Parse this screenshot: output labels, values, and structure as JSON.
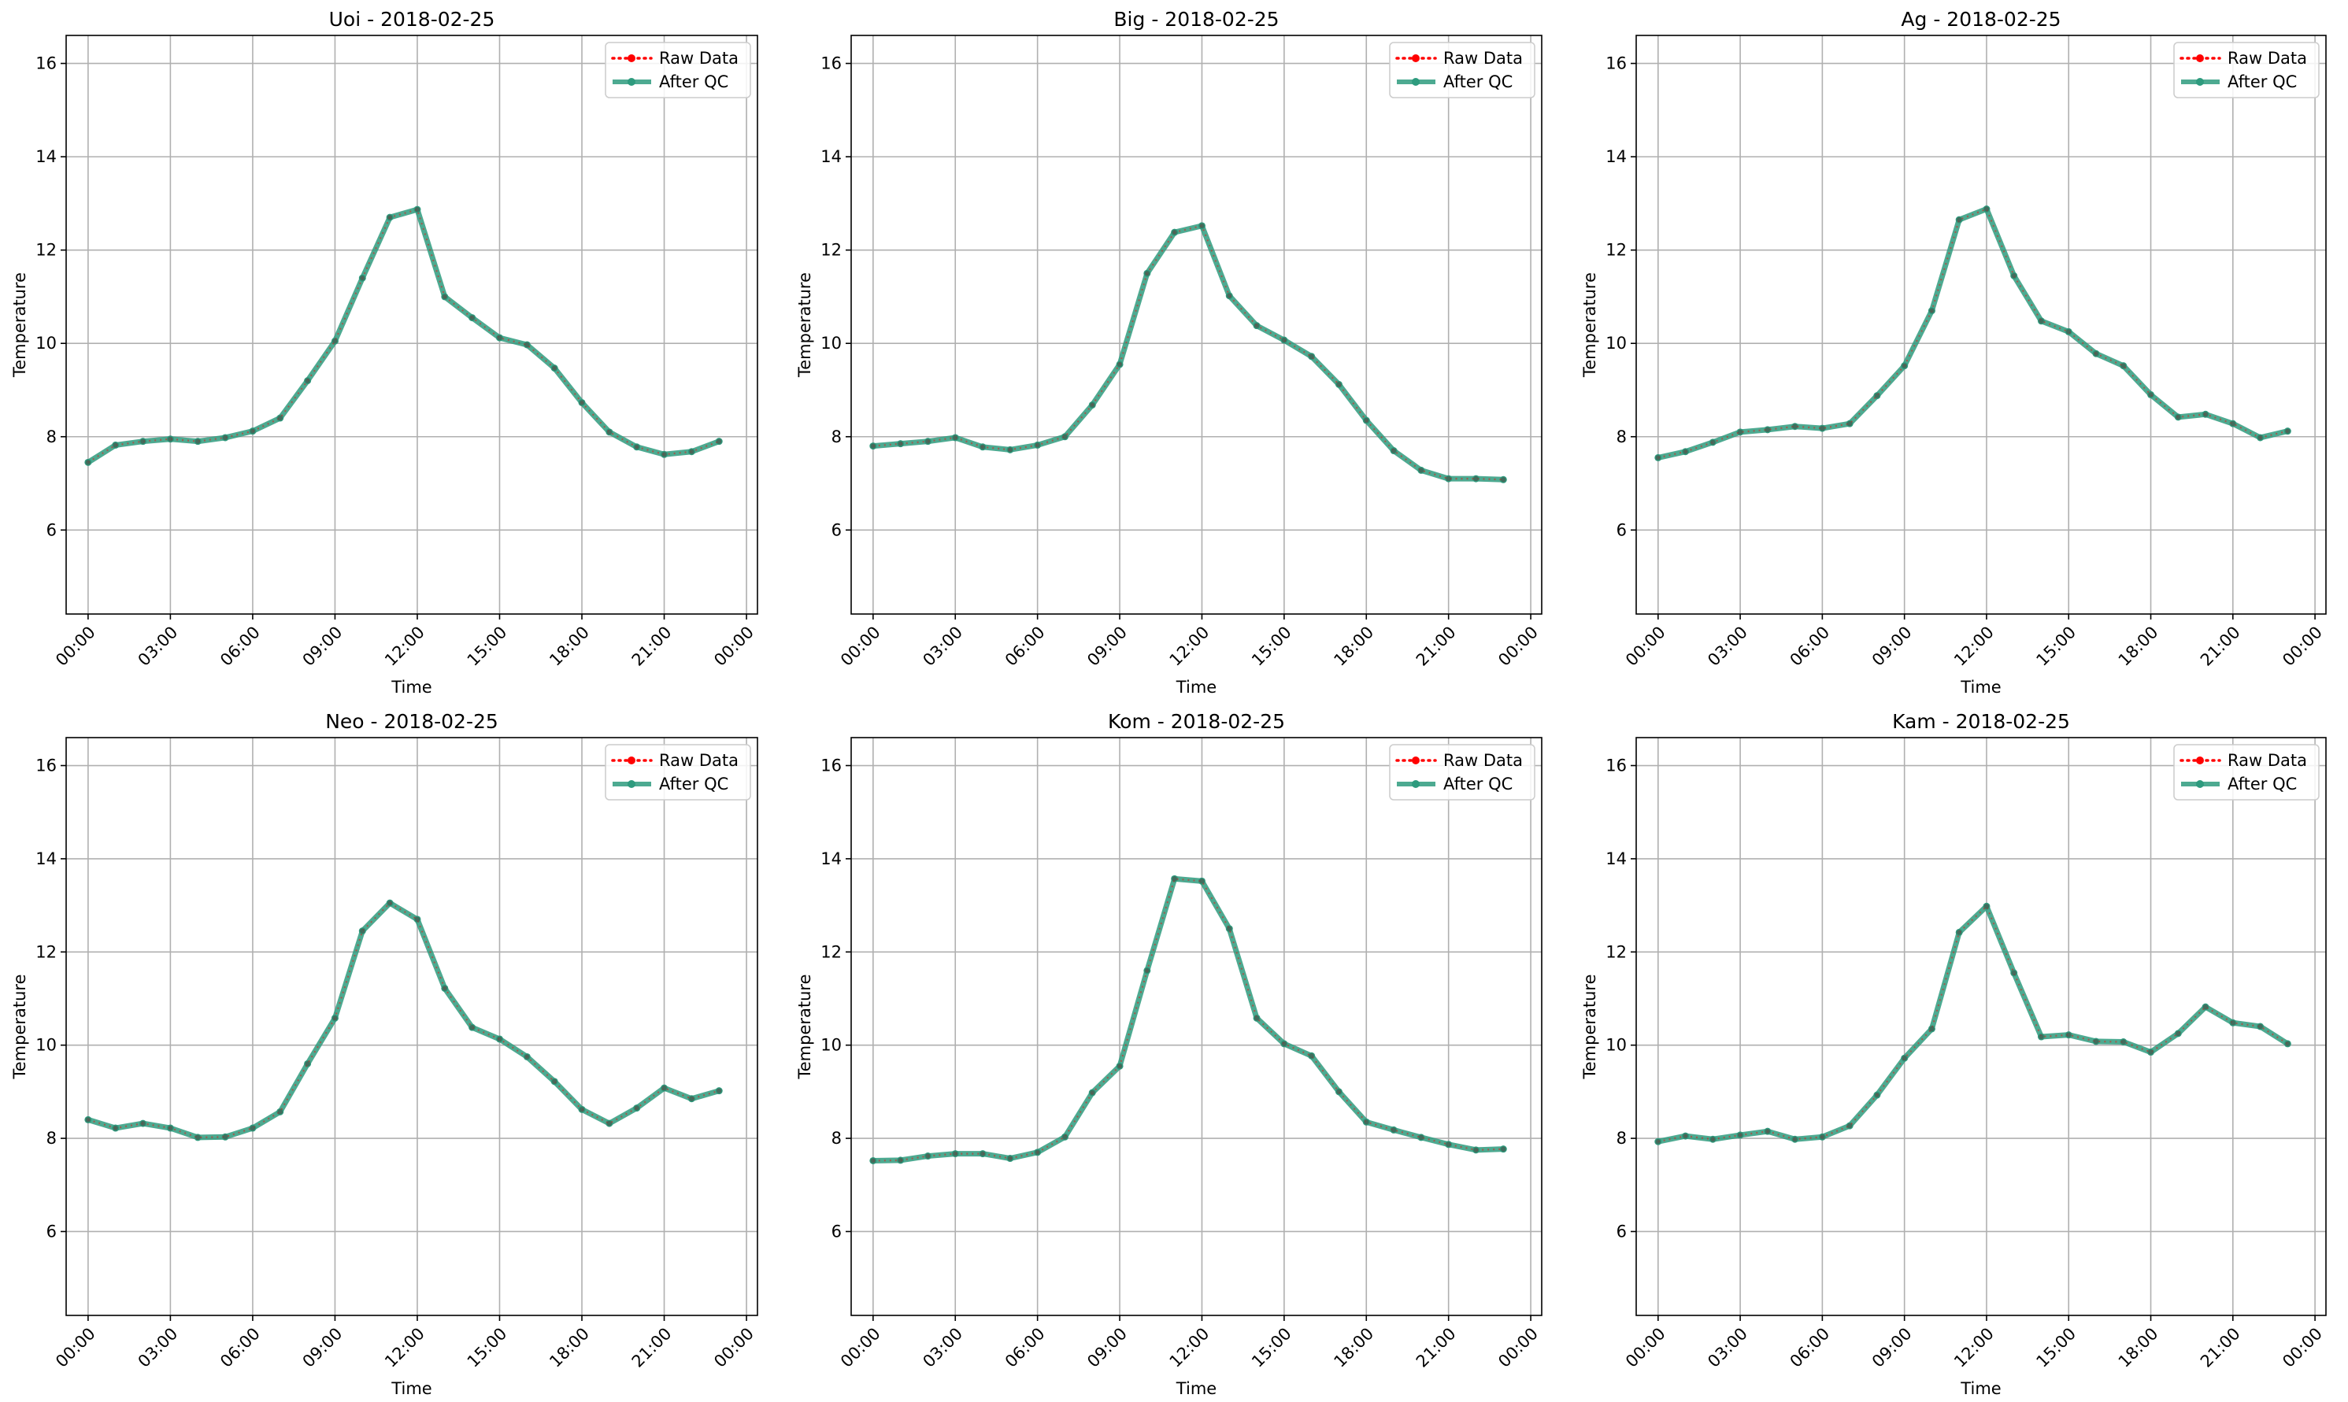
{
  "chart_data": [
    {
      "type": "line",
      "title": "Uoi - 2018-02-25",
      "xlabel": "Time",
      "ylabel": "Temperature",
      "ylim": [
        4.2,
        16.6
      ],
      "yticks": [
        6,
        8,
        10,
        12,
        14,
        16
      ],
      "xlim": [
        "2018-02-24 23:12",
        "2018-02-26 00:24"
      ],
      "xtick_labels": [
        "00:00",
        "03:00",
        "06:00",
        "09:00",
        "12:00",
        "15:00",
        "18:00",
        "21:00",
        "00:00"
      ],
      "grid": true,
      "legend_position": "upper right",
      "x": [
        "00:00",
        "01:00",
        "02:00",
        "03:00",
        "04:00",
        "05:00",
        "06:00",
        "07:00",
        "08:00",
        "09:00",
        "10:00",
        "11:00",
        "12:00",
        "13:00",
        "14:00",
        "15:00",
        "16:00",
        "17:00",
        "18:00",
        "19:00",
        "20:00",
        "21:00",
        "22:00",
        "23:00"
      ],
      "series": [
        {
          "name": "Raw Data",
          "color": "#ff0000",
          "values": [
            7.45,
            7.82,
            7.9,
            7.95,
            7.9,
            7.98,
            8.12,
            8.4,
            9.2,
            10.05,
            11.4,
            12.7,
            12.87,
            11.0,
            10.55,
            10.12,
            9.97,
            9.47,
            8.73,
            8.1,
            7.78,
            7.62,
            7.68,
            7.9
          ]
        },
        {
          "name": "After QC",
          "color": "#2e9b7e",
          "values": [
            7.45,
            7.82,
            7.9,
            7.95,
            7.9,
            7.98,
            8.12,
            8.4,
            9.2,
            10.05,
            11.4,
            12.7,
            12.87,
            11.0,
            10.55,
            10.12,
            9.97,
            9.47,
            8.73,
            8.1,
            7.78,
            7.62,
            7.68,
            7.9
          ]
        }
      ]
    },
    {
      "type": "line",
      "title": "Big - 2018-02-25",
      "xlabel": "Time",
      "ylabel": "Temperature",
      "ylim": [
        4.2,
        16.6
      ],
      "yticks": [
        6,
        8,
        10,
        12,
        14,
        16
      ],
      "xlim": [
        "2018-02-24 23:12",
        "2018-02-26 00:24"
      ],
      "xtick_labels": [
        "00:00",
        "03:00",
        "06:00",
        "09:00",
        "12:00",
        "15:00",
        "18:00",
        "21:00",
        "00:00"
      ],
      "grid": true,
      "legend_position": "upper right",
      "x": [
        "00:00",
        "01:00",
        "02:00",
        "03:00",
        "04:00",
        "05:00",
        "06:00",
        "07:00",
        "08:00",
        "09:00",
        "10:00",
        "11:00",
        "12:00",
        "13:00",
        "14:00",
        "15:00",
        "16:00",
        "17:00",
        "18:00",
        "19:00",
        "20:00",
        "21:00",
        "22:00",
        "23:00"
      ],
      "series": [
        {
          "name": "Raw Data",
          "color": "#ff0000",
          "values": [
            7.8,
            7.85,
            7.9,
            7.98,
            7.78,
            7.72,
            7.82,
            8.0,
            8.68,
            9.55,
            11.5,
            12.38,
            12.52,
            11.02,
            10.38,
            10.07,
            9.72,
            9.12,
            8.35,
            7.7,
            7.28,
            7.1,
            7.1,
            7.08
          ]
        },
        {
          "name": "After QC",
          "color": "#2e9b7e",
          "values": [
            7.8,
            7.85,
            7.9,
            7.98,
            7.78,
            7.72,
            7.82,
            8.0,
            8.68,
            9.55,
            11.5,
            12.38,
            12.52,
            11.02,
            10.38,
            10.07,
            9.72,
            9.12,
            8.35,
            7.7,
            7.28,
            7.1,
            7.1,
            7.08
          ]
        }
      ]
    },
    {
      "type": "line",
      "title": "Ag - 2018-02-25",
      "xlabel": "Time",
      "ylabel": "Temperature",
      "ylim": [
        4.2,
        16.6
      ],
      "yticks": [
        6,
        8,
        10,
        12,
        14,
        16
      ],
      "xlim": [
        "2018-02-24 23:12",
        "2018-02-26 00:24"
      ],
      "xtick_labels": [
        "00:00",
        "03:00",
        "06:00",
        "09:00",
        "12:00",
        "15:00",
        "18:00",
        "21:00",
        "00:00"
      ],
      "grid": true,
      "legend_position": "upper right",
      "x": [
        "00:00",
        "01:00",
        "02:00",
        "03:00",
        "04:00",
        "05:00",
        "06:00",
        "07:00",
        "08:00",
        "09:00",
        "10:00",
        "11:00",
        "12:00",
        "13:00",
        "14:00",
        "15:00",
        "16:00",
        "17:00",
        "18:00",
        "19:00",
        "20:00",
        "21:00",
        "22:00",
        "23:00"
      ],
      "series": [
        {
          "name": "Raw Data",
          "color": "#ff0000",
          "values": [
            7.55,
            7.68,
            7.88,
            8.1,
            8.15,
            8.22,
            8.18,
            8.28,
            8.88,
            9.52,
            10.7,
            12.65,
            12.88,
            11.45,
            10.48,
            10.25,
            9.78,
            9.52,
            8.9,
            8.42,
            8.48,
            8.28,
            7.98,
            8.12
          ]
        },
        {
          "name": "After QC",
          "color": "#2e9b7e",
          "values": [
            7.55,
            7.68,
            7.88,
            8.1,
            8.15,
            8.22,
            8.18,
            8.28,
            8.88,
            9.52,
            10.7,
            12.65,
            12.88,
            11.45,
            10.48,
            10.25,
            9.78,
            9.52,
            8.9,
            8.42,
            8.48,
            8.28,
            7.98,
            8.12
          ]
        }
      ]
    },
    {
      "type": "line",
      "title": "Neo - 2018-02-25",
      "xlabel": "Time",
      "ylabel": "Temperature",
      "ylim": [
        4.2,
        16.6
      ],
      "yticks": [
        6,
        8,
        10,
        12,
        14,
        16
      ],
      "xlim": [
        "2018-02-24 23:12",
        "2018-02-26 00:24"
      ],
      "xtick_labels": [
        "00:00",
        "03:00",
        "06:00",
        "09:00",
        "12:00",
        "15:00",
        "18:00",
        "21:00",
        "00:00"
      ],
      "grid": true,
      "legend_position": "upper right",
      "x": [
        "00:00",
        "01:00",
        "02:00",
        "03:00",
        "04:00",
        "05:00",
        "06:00",
        "07:00",
        "08:00",
        "09:00",
        "10:00",
        "11:00",
        "12:00",
        "13:00",
        "14:00",
        "15:00",
        "16:00",
        "17:00",
        "18:00",
        "19:00",
        "20:00",
        "21:00",
        "22:00",
        "23:00"
      ],
      "series": [
        {
          "name": "Raw Data",
          "color": "#ff0000",
          "values": [
            8.4,
            8.22,
            8.32,
            8.22,
            8.02,
            8.03,
            8.22,
            8.57,
            9.6,
            10.58,
            12.45,
            13.05,
            12.7,
            11.22,
            10.38,
            10.13,
            9.75,
            9.22,
            8.62,
            8.32,
            8.65,
            9.08,
            8.85,
            9.02
          ]
        },
        {
          "name": "After QC",
          "color": "#2e9b7e",
          "values": [
            8.4,
            8.22,
            8.32,
            8.22,
            8.02,
            8.03,
            8.22,
            8.57,
            9.6,
            10.58,
            12.45,
            13.05,
            12.7,
            11.22,
            10.38,
            10.13,
            9.75,
            9.22,
            8.62,
            8.32,
            8.65,
            9.08,
            8.85,
            9.02
          ]
        }
      ]
    },
    {
      "type": "line",
      "title": "Kom - 2018-02-25",
      "xlabel": "Time",
      "ylabel": "Temperature",
      "ylim": [
        4.2,
        16.6
      ],
      "yticks": [
        6,
        8,
        10,
        12,
        14,
        16
      ],
      "xlim": [
        "2018-02-24 23:12",
        "2018-02-26 00:24"
      ],
      "xtick_labels": [
        "00:00",
        "03:00",
        "06:00",
        "09:00",
        "12:00",
        "15:00",
        "18:00",
        "21:00",
        "00:00"
      ],
      "grid": true,
      "legend_position": "upper right",
      "x": [
        "00:00",
        "01:00",
        "02:00",
        "03:00",
        "04:00",
        "05:00",
        "06:00",
        "07:00",
        "08:00",
        "09:00",
        "10:00",
        "11:00",
        "12:00",
        "13:00",
        "14:00",
        "15:00",
        "16:00",
        "17:00",
        "18:00",
        "19:00",
        "20:00",
        "21:00",
        "22:00",
        "23:00"
      ],
      "series": [
        {
          "name": "Raw Data",
          "color": "#ff0000",
          "values": [
            7.52,
            7.53,
            7.62,
            7.67,
            7.67,
            7.57,
            7.7,
            8.03,
            8.98,
            9.55,
            11.6,
            13.57,
            13.52,
            12.5,
            10.58,
            10.03,
            9.77,
            9.0,
            8.35,
            8.18,
            8.02,
            7.87,
            7.75,
            7.77
          ]
        },
        {
          "name": "After QC",
          "color": "#2e9b7e",
          "values": [
            7.52,
            7.53,
            7.62,
            7.67,
            7.67,
            7.57,
            7.7,
            8.03,
            8.98,
            9.55,
            11.6,
            13.57,
            13.52,
            12.5,
            10.58,
            10.03,
            9.77,
            9.0,
            8.35,
            8.18,
            8.02,
            7.87,
            7.75,
            7.77
          ]
        }
      ]
    },
    {
      "type": "line",
      "title": "Kam - 2018-02-25",
      "xlabel": "Time",
      "ylabel": "Temperature",
      "ylim": [
        4.2,
        16.6
      ],
      "yticks": [
        6,
        8,
        10,
        12,
        14,
        16
      ],
      "xlim": [
        "2018-02-24 23:12",
        "2018-02-26 00:24"
      ],
      "xtick_labels": [
        "00:00",
        "03:00",
        "06:00",
        "09:00",
        "12:00",
        "15:00",
        "18:00",
        "21:00",
        "00:00"
      ],
      "grid": true,
      "legend_position": "upper right",
      "x": [
        "00:00",
        "01:00",
        "02:00",
        "03:00",
        "04:00",
        "05:00",
        "06:00",
        "07:00",
        "08:00",
        "09:00",
        "10:00",
        "11:00",
        "12:00",
        "13:00",
        "14:00",
        "15:00",
        "16:00",
        "17:00",
        "18:00",
        "19:00",
        "20:00",
        "21:00",
        "22:00",
        "23:00"
      ],
      "series": [
        {
          "name": "Raw Data",
          "color": "#ff0000",
          "values": [
            7.93,
            8.05,
            7.98,
            8.07,
            8.15,
            7.98,
            8.03,
            8.27,
            8.93,
            9.72,
            10.35,
            12.42,
            12.98,
            11.55,
            10.18,
            10.22,
            10.08,
            10.07,
            9.85,
            10.25,
            10.82,
            10.48,
            10.4,
            10.03
          ]
        },
        {
          "name": "After QC",
          "color": "#2e9b7e",
          "values": [
            7.93,
            8.05,
            7.98,
            8.07,
            8.15,
            7.98,
            8.03,
            8.27,
            8.93,
            9.72,
            10.35,
            12.42,
            12.98,
            11.55,
            10.18,
            10.22,
            10.08,
            10.07,
            9.85,
            10.25,
            10.82,
            10.48,
            10.4,
            10.03
          ]
        }
      ]
    }
  ]
}
